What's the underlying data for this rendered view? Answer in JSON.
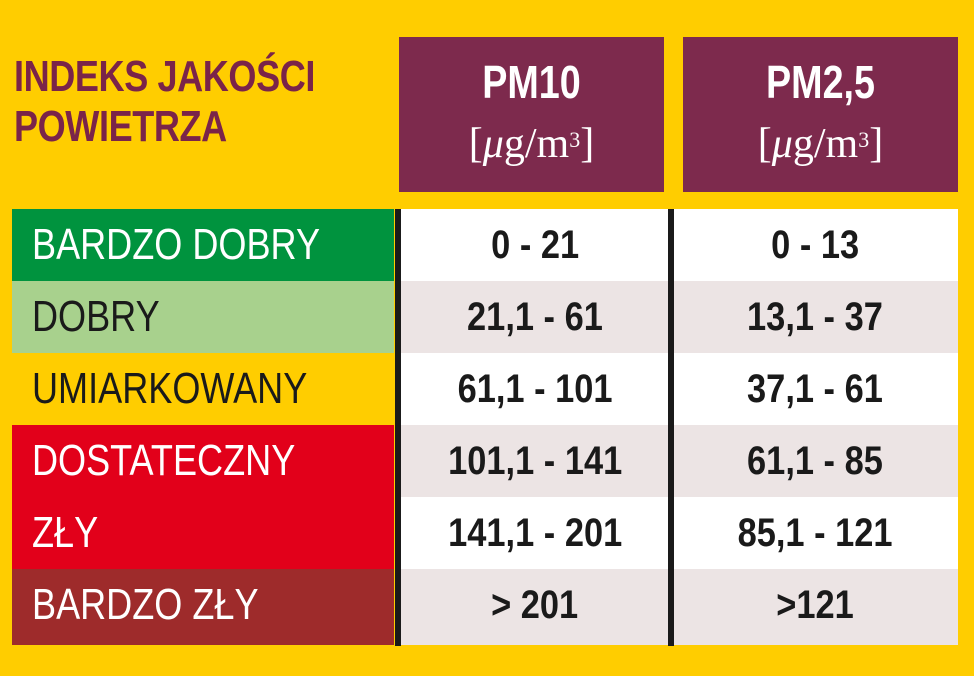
{
  "title": {
    "line1": "INDEKS JAKOŚCI",
    "line2": "POWIETRZA"
  },
  "columns": [
    {
      "label": "PM10",
      "unit_prefix": "[",
      "unit_mu": "μ",
      "unit_mid": "g/m",
      "unit_sup": "3",
      "unit_suffix": "]"
    },
    {
      "label": "PM2,5",
      "unit_prefix": "[",
      "unit_mu": "μ",
      "unit_mid": "g/m",
      "unit_sup": "3",
      "unit_suffix": "]"
    }
  ],
  "categories": [
    {
      "label": "BARDZO DOBRY",
      "color": "#00933e"
    },
    {
      "label": "DOBRY",
      "color": "#a8d18d"
    },
    {
      "label": "UMIARKOWANY",
      "color": "#ffcd00"
    },
    {
      "label": "DOSTATECZNY",
      "color": "#e2001a"
    },
    {
      "label": "ZŁY",
      "color": "#e2001a"
    },
    {
      "label": "BARDZO ZŁY",
      "color": "#9e2b2b"
    }
  ],
  "rows": [
    {
      "pm10": "0 - 21",
      "pm25": "0 - 13"
    },
    {
      "pm10": "21,1 - 61",
      "pm25": "13,1 - 37"
    },
    {
      "pm10": "61,1 - 101",
      "pm25": "37,1 - 61"
    },
    {
      "pm10": "101,1 - 141",
      "pm25": "61,1 - 85"
    },
    {
      "pm10": "141,1 - 201",
      "pm25": "85,1 - 121"
    },
    {
      "pm10": "> 201",
      "pm25": ">121"
    }
  ]
}
